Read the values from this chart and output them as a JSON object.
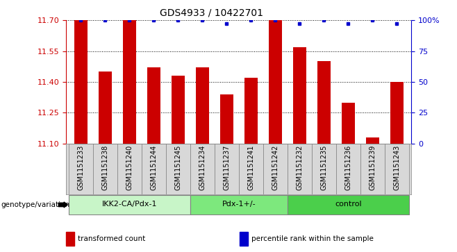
{
  "title": "GDS4933 / 10422701",
  "samples": [
    "GSM1151233",
    "GSM1151238",
    "GSM1151240",
    "GSM1151244",
    "GSM1151245",
    "GSM1151234",
    "GSM1151237",
    "GSM1151241",
    "GSM1151242",
    "GSM1151232",
    "GSM1151235",
    "GSM1151236",
    "GSM1151239",
    "GSM1151243"
  ],
  "red_values": [
    11.7,
    11.45,
    11.7,
    11.47,
    11.43,
    11.47,
    11.34,
    11.42,
    11.7,
    11.57,
    11.5,
    11.3,
    11.13,
    11.4
  ],
  "blue_values": [
    100,
    100,
    100,
    100,
    100,
    100,
    97,
    100,
    100,
    97,
    100,
    97,
    100,
    97
  ],
  "groups": [
    {
      "label": "IKK2-CA/Pdx-1",
      "start": 0,
      "end": 5,
      "color": "#c8f5c8"
    },
    {
      "label": "Pdx-1+/-",
      "start": 5,
      "end": 9,
      "color": "#7de87d"
    },
    {
      "label": "control",
      "start": 9,
      "end": 14,
      "color": "#4bcf4b"
    }
  ],
  "ylim_left": [
    11.1,
    11.7
  ],
  "ylim_right": [
    0,
    100
  ],
  "yticks_left": [
    11.1,
    11.25,
    11.4,
    11.55,
    11.7
  ],
  "yticks_right": [
    0,
    25,
    50,
    75,
    100
  ],
  "bar_color": "#cc0000",
  "dot_color": "#0000cc",
  "group_label": "genotype/variation",
  "legend_items": [
    {
      "color": "#cc0000",
      "label": "transformed count"
    },
    {
      "color": "#0000cc",
      "label": "percentile rank within the sample"
    }
  ],
  "bg_color": "#d8d8d8",
  "bar_width": 0.55
}
